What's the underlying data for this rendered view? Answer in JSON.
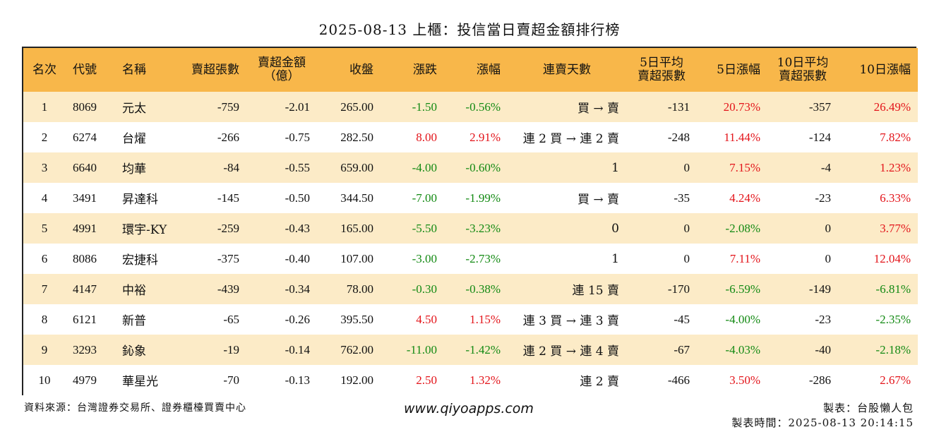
{
  "title": "2025-08-13 上櫃：投信當日賣超金額排行榜",
  "headers": {
    "rank": "名次",
    "code": "代號",
    "name": "名稱",
    "sell_shares": "賣超張數",
    "sell_amount_l1": "賣超金額",
    "sell_amount_l2": "（億）",
    "close": "收盤",
    "change": "漲跌",
    "change_pct": "漲幅",
    "streak": "連賣天數",
    "avg5_l1": "5日平均",
    "avg5_l2": "賣超張數",
    "pct5": "5日漲幅",
    "avg10_l1": "10日平均",
    "avg10_l2": "賣超張數",
    "pct10": "10日漲幅"
  },
  "rows": [
    {
      "rank": "1",
      "code": "8069",
      "name": "元太",
      "sell_shares": "-759",
      "sell_amount": "-2.01",
      "close": "265.00",
      "change": "-1.50",
      "change_pct": "-0.56%",
      "streak": "買 → 賣",
      "avg5": "-131",
      "pct5": "20.73%",
      "avg10": "-357",
      "pct10": "26.49%"
    },
    {
      "rank": "2",
      "code": "6274",
      "name": "台燿",
      "sell_shares": "-266",
      "sell_amount": "-0.75",
      "close": "282.50",
      "change": "8.00",
      "change_pct": "2.91%",
      "streak": "連 2 買 → 連 2 賣",
      "avg5": "-248",
      "pct5": "11.44%",
      "avg10": "-124",
      "pct10": "7.82%"
    },
    {
      "rank": "3",
      "code": "6640",
      "name": "均華",
      "sell_shares": "-84",
      "sell_amount": "-0.55",
      "close": "659.00",
      "change": "-4.00",
      "change_pct": "-0.60%",
      "streak": "1",
      "avg5": "0",
      "pct5": "7.15%",
      "avg10": "-4",
      "pct10": "1.23%"
    },
    {
      "rank": "4",
      "code": "3491",
      "name": "昇達科",
      "sell_shares": "-145",
      "sell_amount": "-0.50",
      "close": "344.50",
      "change": "-7.00",
      "change_pct": "-1.99%",
      "streak": "買 → 賣",
      "avg5": "-35",
      "pct5": "4.24%",
      "avg10": "-23",
      "pct10": "6.33%"
    },
    {
      "rank": "5",
      "code": "4991",
      "name": "環宇-KY",
      "sell_shares": "-259",
      "sell_amount": "-0.43",
      "close": "165.00",
      "change": "-5.50",
      "change_pct": "-3.23%",
      "streak": "0",
      "avg5": "0",
      "pct5": "-2.08%",
      "avg10": "0",
      "pct10": "3.77%"
    },
    {
      "rank": "6",
      "code": "8086",
      "name": "宏捷科",
      "sell_shares": "-375",
      "sell_amount": "-0.40",
      "close": "107.00",
      "change": "-3.00",
      "change_pct": "-2.73%",
      "streak": "1",
      "avg5": "0",
      "pct5": "7.11%",
      "avg10": "0",
      "pct10": "12.04%"
    },
    {
      "rank": "7",
      "code": "4147",
      "name": "中裕",
      "sell_shares": "-439",
      "sell_amount": "-0.34",
      "close": "78.00",
      "change": "-0.30",
      "change_pct": "-0.38%",
      "streak": "連 15 賣",
      "avg5": "-170",
      "pct5": "-6.59%",
      "avg10": "-149",
      "pct10": "-6.81%"
    },
    {
      "rank": "8",
      "code": "6121",
      "name": "新普",
      "sell_shares": "-65",
      "sell_amount": "-0.26",
      "close": "395.50",
      "change": "4.50",
      "change_pct": "1.15%",
      "streak": "連 3 買 → 連 3 賣",
      "avg5": "-45",
      "pct5": "-4.00%",
      "avg10": "-23",
      "pct10": "-2.35%"
    },
    {
      "rank": "9",
      "code": "3293",
      "name": "鈊象",
      "sell_shares": "-19",
      "sell_amount": "-0.14",
      "close": "762.00",
      "change": "-11.00",
      "change_pct": "-1.42%",
      "streak": "連 2 買 → 連 4 賣",
      "avg5": "-67",
      "pct5": "-4.03%",
      "avg10": "-40",
      "pct10": "-2.18%"
    },
    {
      "rank": "10",
      "code": "4979",
      "name": "華星光",
      "sell_shares": "-70",
      "sell_amount": "-0.13",
      "close": "192.00",
      "change": "2.50",
      "change_pct": "1.32%",
      "streak": "連 2 賣",
      "avg5": "-466",
      "pct5": "3.50%",
      "avg10": "-286",
      "pct10": "2.67%"
    }
  ],
  "footer": {
    "source": "資料來源：台灣證券交易所、證券櫃檯買賣中心",
    "website": "www.qiyoapps.com",
    "maker": "製表：台股懶人包",
    "made_time": "製表時間：2025-08-13 20:14:15"
  },
  "colors": {
    "header_bg": "#f8b74a",
    "odd_row_bg": "#fcebc7",
    "up": "#e3141a",
    "down": "#138a13"
  }
}
